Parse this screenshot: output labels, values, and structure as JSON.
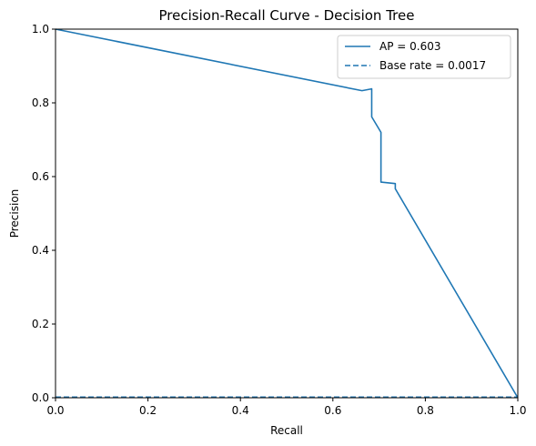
{
  "chart_data": {
    "type": "line",
    "title": "Precision-Recall Curve - Decision Tree",
    "xlabel": "Recall",
    "ylabel": "Precision",
    "xlim": [
      0.0,
      1.0
    ],
    "ylim": [
      0.0,
      1.0
    ],
    "xticks": [
      0.0,
      0.2,
      0.4,
      0.6,
      0.8,
      1.0
    ],
    "yticks": [
      0.0,
      0.2,
      0.4,
      0.6,
      0.8,
      1.0
    ],
    "xtick_labels": [
      "0.0",
      "0.2",
      "0.4",
      "0.6",
      "0.8",
      "1.0"
    ],
    "ytick_labels": [
      "0.0",
      "0.2",
      "0.4",
      "0.6",
      "0.8",
      "1.0"
    ],
    "grid": false,
    "legend_position": "upper right",
    "series": [
      {
        "name": "AP = 0.603",
        "style": "solid",
        "color": "#1f77b4",
        "x": [
          0.0,
          0.663,
          0.684,
          0.684,
          0.704,
          0.704,
          0.735,
          0.735,
          1.0
        ],
        "y": [
          1.0,
          0.833,
          0.838,
          0.762,
          0.72,
          0.585,
          0.581,
          0.567,
          0.0
        ]
      },
      {
        "name": "Base rate = 0.0017",
        "style": "dashed",
        "color": "#1f77b4",
        "x": [
          0.0,
          1.0
        ],
        "y": [
          0.0017,
          0.0017
        ]
      }
    ]
  }
}
